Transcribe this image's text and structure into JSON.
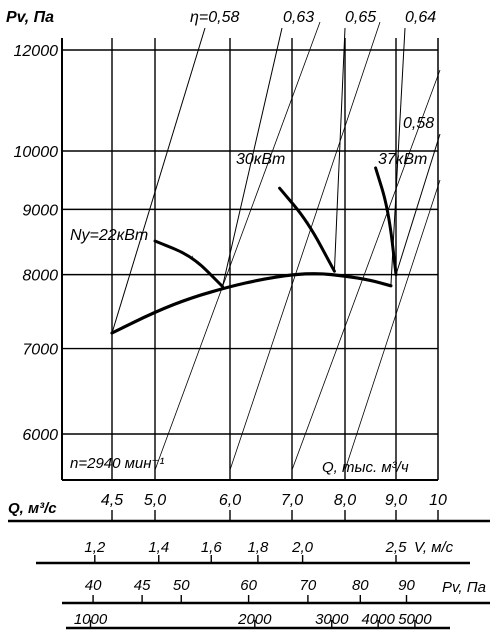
{
  "chart_data": {
    "type": "line",
    "ylabel": "Pv, Па",
    "y_ticks": [
      "12000",
      "10000",
      "9000",
      "8000",
      "7000",
      "6000"
    ],
    "y_tick_values": [
      12000,
      10000,
      9000,
      8000,
      7000,
      6000
    ],
    "x_axis_label": "Q, тыс. м³/ч",
    "x_ticks": [
      "4,5",
      "5,0",
      "6,0",
      "7,0",
      "8,0",
      "9,0",
      "10"
    ],
    "x_tick_values": [
      4.5,
      5.0,
      6.0,
      7.0,
      8.0,
      9.0,
      10.0
    ],
    "speed_label": "n=2940 мин⁻¹",
    "scale_q_label": "Q, м³/с",
    "scale_q_ticks": [
      "1,2",
      "1,4",
      "1,6",
      "1,8",
      "2,0",
      "2,5"
    ],
    "scale_q_values": [
      4.3,
      5.05,
      5.75,
      6.45,
      7.2,
      9.0
    ],
    "scale_v_label": "V, м/с",
    "scale_pv_label": "Pv, Па",
    "scale_pv_ticks": [
      "40",
      "45",
      "50",
      "60",
      "70",
      "80",
      "90"
    ],
    "scale_pv_values": [
      4.28,
      4.85,
      5.35,
      6.3,
      7.3,
      8.3,
      9.25
    ],
    "scale_pv2_ticks": [
      "1000",
      "2000",
      "3000",
      "4000",
      "5000"
    ],
    "scale_pv2_values": [
      4.25,
      6.4,
      7.75,
      8.65,
      9.45
    ],
    "efficiency_labels": [
      "η=0,58",
      "0,63",
      "0,65",
      "0,64",
      "0,58"
    ],
    "power_labels": [
      "Ny=22кВт",
      "30кВт",
      "37кВт"
    ],
    "series": [
      {
        "values": [
          {
            "x": 4.5,
            "y": 7200
          },
          {
            "x": 5.0,
            "y": 7480
          },
          {
            "x": 5.5,
            "y": 7680
          },
          {
            "x": 6.0,
            "y": 7830
          },
          {
            "x": 6.5,
            "y": 7930
          },
          {
            "x": 7.0,
            "y": 8000
          },
          {
            "x": 7.5,
            "y": 8020
          },
          {
            "x": 8.0,
            "y": 7980
          },
          {
            "x": 8.5,
            "y": 7920
          },
          {
            "x": 8.9,
            "y": 7840
          }
        ]
      },
      {
        "values": [
          {
            "x": 5.0,
            "y": 8500
          },
          {
            "x": 5.5,
            "y": 8270
          },
          {
            "x": 5.9,
            "y": 7830
          }
        ]
      },
      {
        "values": [
          {
            "x": 6.8,
            "y": 9350
          },
          {
            "x": 7.3,
            "y": 8800
          },
          {
            "x": 7.8,
            "y": 8050
          }
        ]
      },
      {
        "values": [
          {
            "x": 8.6,
            "y": 9700
          },
          {
            "x": 8.85,
            "y": 9000
          },
          {
            "x": 9.0,
            "y": 8000
          }
        ]
      }
    ]
  }
}
